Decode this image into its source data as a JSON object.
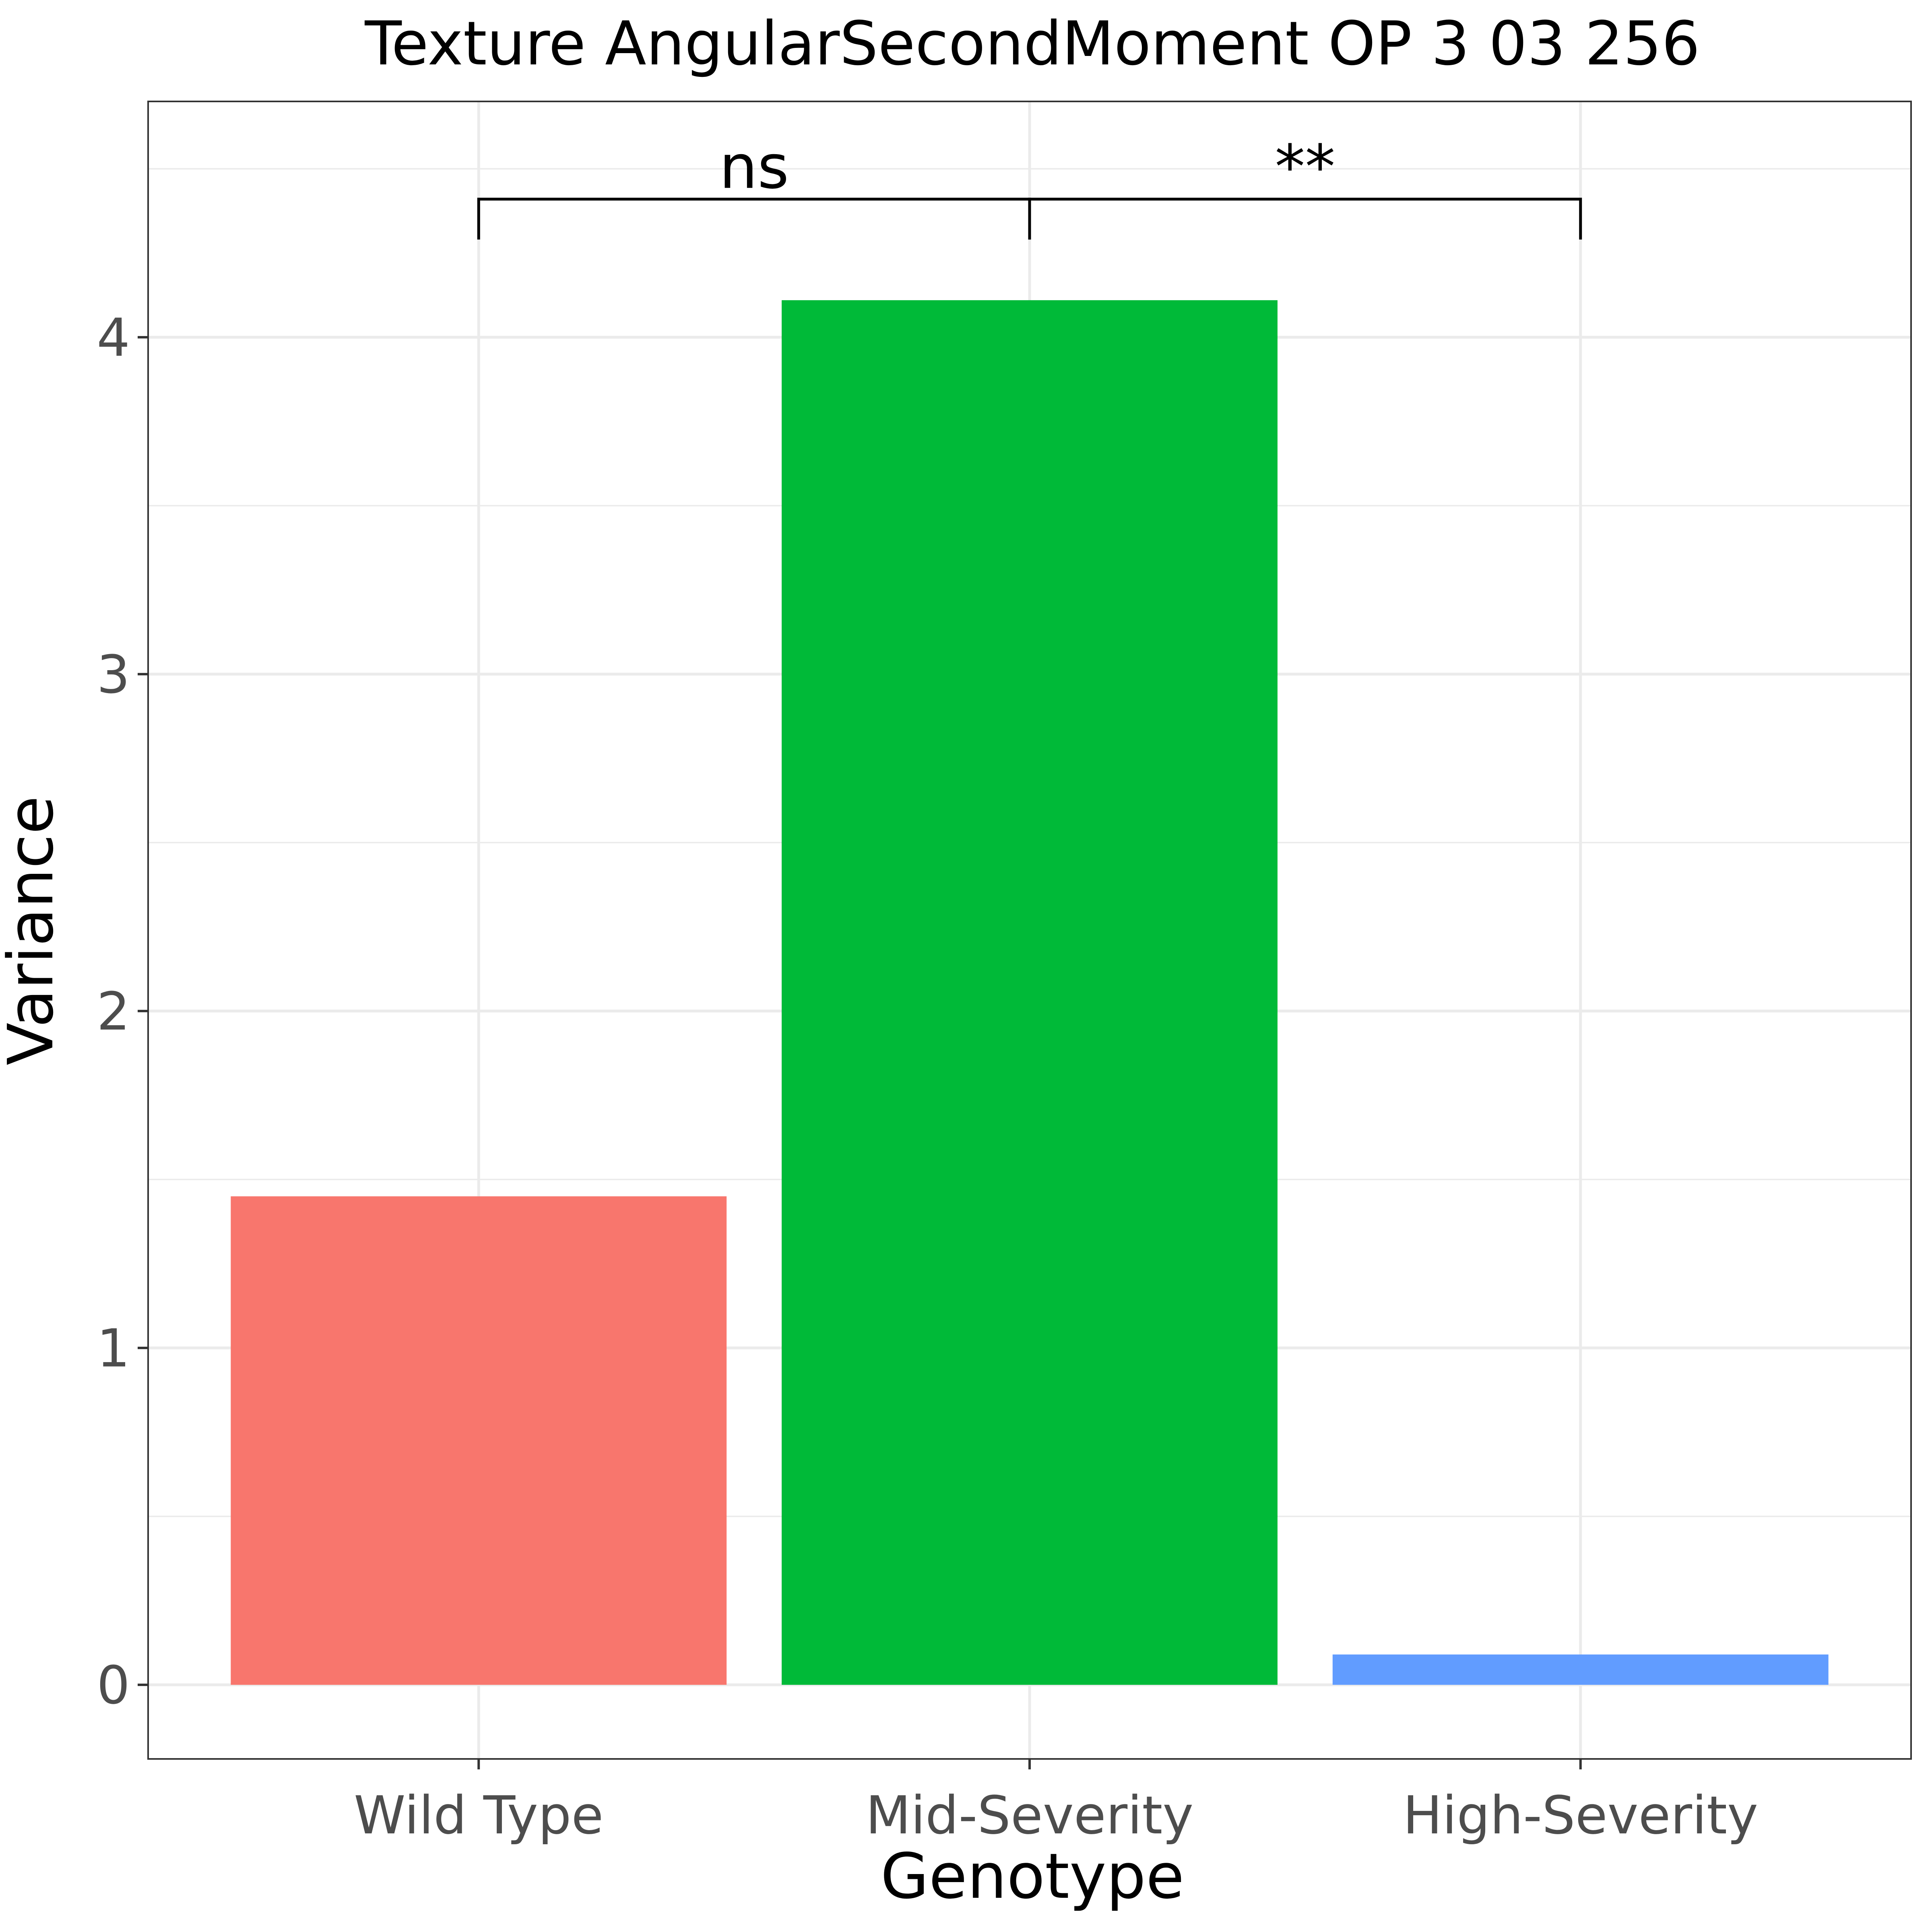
{
  "chart_data": {
    "type": "bar",
    "title": "Texture AngularSecondMoment OP 3 03 256",
    "xlabel": "Genotype",
    "ylabel": "Variance",
    "categories": [
      "Wild Type",
      "Mid-Severity",
      "High-Severity"
    ],
    "values": [
      1.45,
      4.11,
      0.09
    ],
    "colors": [
      "#F8766D",
      "#00BA38",
      "#619CFF"
    ],
    "ylim": [
      -0.22,
      4.7
    ],
    "yticks": [
      0,
      1,
      2,
      3,
      4
    ],
    "grid": true,
    "legend": "none",
    "comparisons": [
      {
        "from": "Wild Type",
        "to": "Mid-Severity",
        "label": "ns"
      },
      {
        "from": "Mid-Severity",
        "to": "High-Severity",
        "label": "**"
      }
    ],
    "bracket_y": 4.41,
    "bracket_tick_y": 4.29
  }
}
